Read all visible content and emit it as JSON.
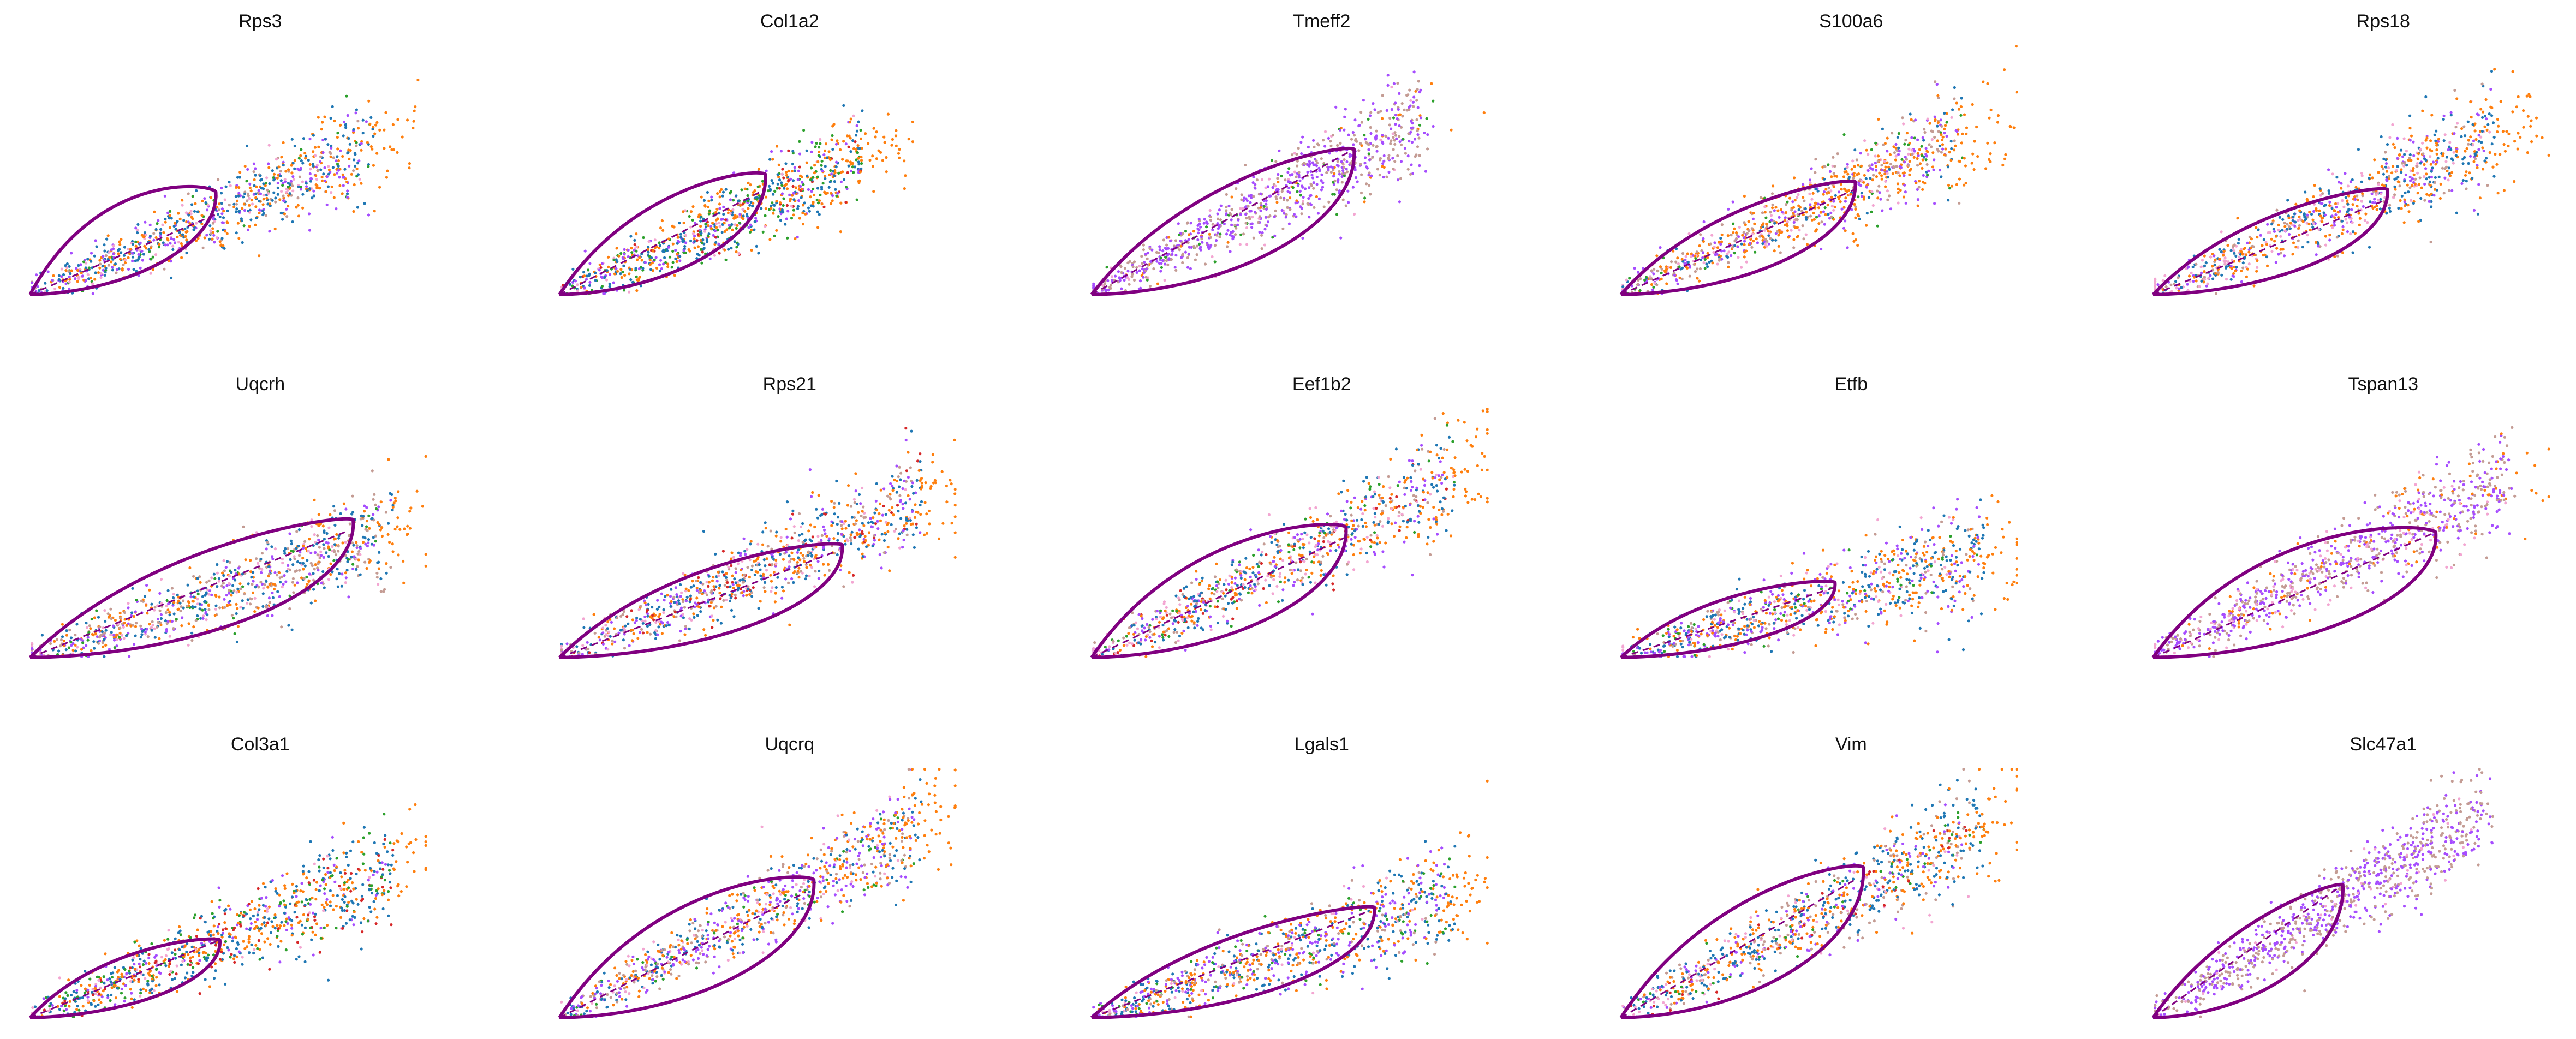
{
  "chart_data": [
    {
      "type": "scatter",
      "title": "Rps3",
      "steady_state": [
        0.46,
        0.32
      ],
      "loop": {
        "end": [
          0.46,
          0.41
        ],
        "bulge": 0.26
      },
      "shape": {
        "spread": 0.85,
        "slope": 0.7
      },
      "mix": {
        "orange": 0.3,
        "blue": 0.3,
        "purple": 0.2,
        "pink": 0.1,
        "tan": 0.05,
        "green": 0.05
      }
    },
    {
      "type": "scatter",
      "title": "Col1a2",
      "steady_state": [
        0.51,
        0.42
      ],
      "loop": {
        "end": [
          0.51,
          0.48
        ],
        "bulge": 0.18
      },
      "shape": {
        "spread": 0.75,
        "slope": 0.72
      },
      "mix": {
        "orange": 0.35,
        "blue": 0.25,
        "purple": 0.15,
        "green": 0.15,
        "pink": 0.05,
        "red": 0.05
      }
    },
    {
      "type": "scatter",
      "title": "Tmeff2",
      "steady_state": [
        0.65,
        0.58
      ],
      "loop": {
        "end": [
          0.65,
          0.58
        ],
        "bulge": 0.16
      },
      "shape": {
        "spread": 0.85,
        "slope": 0.85
      },
      "mix": {
        "purple": 0.5,
        "tan": 0.35,
        "pink": 0.05,
        "green": 0.05,
        "orange": 0.05
      }
    },
    {
      "type": "scatter",
      "title": "S100a6",
      "steady_state": [
        0.58,
        0.42
      ],
      "loop": {
        "end": [
          0.58,
          0.45
        ],
        "bulge": 0.13
      },
      "shape": {
        "spread": 0.85,
        "slope": 0.75
      },
      "mix": {
        "orange": 0.4,
        "purple": 0.2,
        "tan": 0.15,
        "pink": 0.1,
        "blue": 0.1,
        "green": 0.05
      }
    },
    {
      "type": "scatter",
      "title": "Rps18",
      "steady_state": [
        0.58,
        0.38
      ],
      "loop": {
        "end": [
          0.58,
          0.42
        ],
        "bulge": 0.12
      },
      "shape": {
        "spread": 0.85,
        "slope": 0.75
      },
      "mix": {
        "orange": 0.35,
        "blue": 0.25,
        "purple": 0.15,
        "pink": 0.15,
        "tan": 0.1
      }
    },
    {
      "type": "scatter",
      "title": "Uqcrh",
      "steady_state": [
        0.78,
        0.5
      ],
      "loop": {
        "end": [
          0.8,
          0.55
        ],
        "bulge": 0.15
      },
      "shape": {
        "spread": 0.9,
        "slope": 0.55
      },
      "mix": {
        "orange": 0.25,
        "blue": 0.25,
        "tan": 0.2,
        "purple": 0.15,
        "pink": 0.1,
        "green": 0.05
      }
    },
    {
      "type": "scatter",
      "title": "Rps21",
      "steady_state": [
        0.68,
        0.42
      ],
      "loop": {
        "end": [
          0.7,
          0.45
        ],
        "bulge": 0.15
      },
      "shape": {
        "spread": 0.9,
        "slope": 0.7
      },
      "mix": {
        "orange": 0.3,
        "blue": 0.25,
        "tan": 0.15,
        "purple": 0.15,
        "pink": 0.1,
        "red": 0.05
      }
    },
    {
      "type": "scatter",
      "title": "Eef1b2",
      "steady_state": [
        0.63,
        0.48
      ],
      "loop": {
        "end": [
          0.63,
          0.52
        ],
        "bulge": 0.24
      },
      "shape": {
        "spread": 0.9,
        "slope": 0.8
      },
      "mix": {
        "orange": 0.3,
        "blue": 0.2,
        "purple": 0.15,
        "pink": 0.15,
        "tan": 0.1,
        "green": 0.05,
        "red": 0.05
      }
    },
    {
      "type": "scatter",
      "title": "Etfb",
      "steady_state": [
        0.53,
        0.28
      ],
      "loop": {
        "end": [
          0.53,
          0.3
        ],
        "bulge": 0.12
      },
      "shape": {
        "spread": 0.9,
        "slope": 0.45
      },
      "mix": {
        "orange": 0.3,
        "blue": 0.25,
        "purple": 0.2,
        "tan": 0.1,
        "pink": 0.1,
        "green": 0.05
      }
    },
    {
      "type": "scatter",
      "title": "Tspan13",
      "steady_state": [
        0.7,
        0.5
      ],
      "loop": {
        "end": [
          0.7,
          0.5
        ],
        "bulge": 0.28
      },
      "shape": {
        "spread": 0.9,
        "slope": 0.8
      },
      "mix": {
        "purple": 0.4,
        "tan": 0.35,
        "pink": 0.15,
        "orange": 0.1
      }
    },
    {
      "type": "scatter",
      "title": "Col3a1",
      "steady_state": [
        0.47,
        0.31
      ],
      "loop": {
        "end": [
          0.47,
          0.31
        ],
        "bulge": 0.12
      },
      "shape": {
        "spread": 0.9,
        "slope": 0.65
      },
      "mix": {
        "orange": 0.3,
        "blue": 0.3,
        "green": 0.15,
        "purple": 0.1,
        "red": 0.1,
        "pink": 0.05
      }
    },
    {
      "type": "scatter",
      "title": "Uqcrq",
      "steady_state": [
        0.61,
        0.5
      ],
      "loop": {
        "end": [
          0.63,
          0.55
        ],
        "bulge": 0.25
      },
      "shape": {
        "spread": 0.9,
        "slope": 0.85
      },
      "mix": {
        "orange": 0.3,
        "blue": 0.2,
        "purple": 0.2,
        "tan": 0.15,
        "pink": 0.1,
        "green": 0.05
      }
    },
    {
      "type": "scatter",
      "title": "Lgals1",
      "steady_state": [
        0.68,
        0.42
      ],
      "loop": {
        "end": [
          0.7,
          0.44
        ],
        "bulge": 0.12
      },
      "shape": {
        "spread": 0.9,
        "slope": 0.55
      },
      "mix": {
        "orange": 0.3,
        "blue": 0.25,
        "purple": 0.2,
        "tan": 0.1,
        "green": 0.1,
        "pink": 0.05
      }
    },
    {
      "type": "scatter",
      "title": "Vim",
      "steady_state": [
        0.58,
        0.55
      ],
      "loop": {
        "end": [
          0.6,
          0.6
        ],
        "bulge": 0.2
      },
      "shape": {
        "spread": 0.9,
        "slope": 0.85
      },
      "mix": {
        "orange": 0.3,
        "blue": 0.25,
        "tan": 0.15,
        "pink": 0.1,
        "purple": 0.1,
        "green": 0.05,
        "red": 0.05
      }
    },
    {
      "type": "scatter",
      "title": "Slc47a1",
      "steady_state": [
        0.47,
        0.53
      ],
      "loop": {
        "end": [
          0.47,
          0.53
        ],
        "bulge": 0.1
      },
      "shape": {
        "spread": 0.85,
        "slope": 1.0
      },
      "mix": {
        "purple": 0.5,
        "tan": 0.45,
        "pink": 0.05
      }
    }
  ],
  "colors": {
    "orange": "#ff7f0e",
    "blue": "#1f77b4",
    "purple": "#a64dff",
    "pink": "#f3a6d2",
    "tan": "#c49c94",
    "green": "#2ca02c",
    "red": "#d62728",
    "curve": "#800080"
  },
  "layout": {
    "columns": 5,
    "rows": 3
  }
}
